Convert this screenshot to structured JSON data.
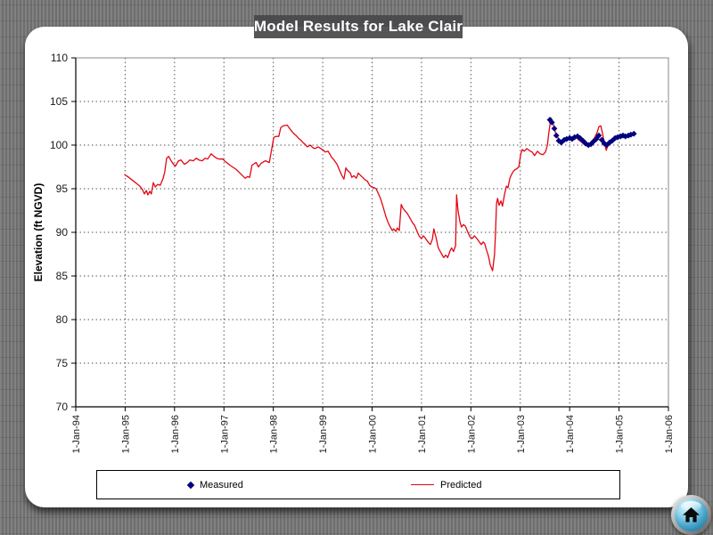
{
  "slide": {
    "title": "Model Results for Lake Clair"
  },
  "icons": {
    "home_icon": "⌂"
  },
  "legend": {
    "measured_label": "Measured",
    "predicted_label": "Predicted"
  },
  "chart_data": {
    "type": "line",
    "title": "Model Results for Lake Clair",
    "xlabel": "",
    "ylabel": "Elevation (ft NGVD)",
    "ylim": [
      70,
      110
    ],
    "y_ticks": [
      70,
      75,
      80,
      85,
      90,
      95,
      100,
      105,
      110
    ],
    "x_ticks": [
      "1-Jan-94",
      "1-Jan-95",
      "1-Jan-96",
      "1-Jan-97",
      "1-Jan-98",
      "1-Jan-99",
      "1-Jan-00",
      "1-Jan-01",
      "1-Jan-02",
      "1-Jan-03",
      "1-Jan-04",
      "1-Jan-05",
      "1-Jan-06"
    ],
    "x_unit": "t = years after 1-Jan-1994",
    "x_range_years": [
      0,
      12
    ],
    "grid": "dashed",
    "legend_position": "bottom",
    "series": [
      {
        "name": "Measured",
        "type": "scatter",
        "marker": "diamond",
        "color": "#000080",
        "points": [
          [
            9.6,
            102.9
          ],
          [
            9.64,
            102.6
          ],
          [
            9.69,
            101.9
          ],
          [
            9.73,
            101.1
          ],
          [
            9.78,
            100.5
          ],
          [
            9.83,
            100.3
          ],
          [
            9.89,
            100.6
          ],
          [
            9.94,
            100.7
          ],
          [
            10.0,
            100.8
          ],
          [
            10.05,
            100.7
          ],
          [
            10.1,
            100.9
          ],
          [
            10.16,
            101.0
          ],
          [
            10.21,
            100.8
          ],
          [
            10.27,
            100.5
          ],
          [
            10.32,
            100.2
          ],
          [
            10.38,
            100.0
          ],
          [
            10.43,
            100.1
          ],
          [
            10.48,
            100.4
          ],
          [
            10.54,
            100.7
          ],
          [
            10.59,
            101.1
          ],
          [
            10.65,
            100.6
          ],
          [
            10.7,
            100.2
          ],
          [
            10.75,
            100.0
          ],
          [
            10.81,
            100.3
          ],
          [
            10.86,
            100.5
          ],
          [
            10.92,
            100.8
          ],
          [
            10.97,
            100.9
          ],
          [
            11.03,
            101.0
          ],
          [
            11.08,
            101.1
          ],
          [
            11.13,
            101.0
          ],
          [
            11.19,
            101.1
          ],
          [
            11.24,
            101.2
          ],
          [
            11.3,
            101.3
          ]
        ]
      },
      {
        "name": "Predicted",
        "type": "line",
        "color": "#e30613",
        "points": [
          [
            0.99,
            96.6
          ],
          [
            1.05,
            96.4
          ],
          [
            1.14,
            96.0
          ],
          [
            1.23,
            95.6
          ],
          [
            1.3,
            95.3
          ],
          [
            1.35,
            94.9
          ],
          [
            1.39,
            94.4
          ],
          [
            1.43,
            94.8
          ],
          [
            1.46,
            94.3
          ],
          [
            1.5,
            94.7
          ],
          [
            1.53,
            94.4
          ],
          [
            1.57,
            95.7
          ],
          [
            1.61,
            95.2
          ],
          [
            1.66,
            95.5
          ],
          [
            1.71,
            95.4
          ],
          [
            1.77,
            96.2
          ],
          [
            1.8,
            96.9
          ],
          [
            1.84,
            98.5
          ],
          [
            1.88,
            98.7
          ],
          [
            1.93,
            98.2
          ],
          [
            1.98,
            97.8
          ],
          [
            2.02,
            97.6
          ],
          [
            2.08,
            98.2
          ],
          [
            2.13,
            98.3
          ],
          [
            2.2,
            97.8
          ],
          [
            2.26,
            98.0
          ],
          [
            2.31,
            98.3
          ],
          [
            2.38,
            98.2
          ],
          [
            2.44,
            98.5
          ],
          [
            2.49,
            98.3
          ],
          [
            2.56,
            98.2
          ],
          [
            2.62,
            98.5
          ],
          [
            2.67,
            98.4
          ],
          [
            2.74,
            99.0
          ],
          [
            2.8,
            98.7
          ],
          [
            2.85,
            98.5
          ],
          [
            2.91,
            98.4
          ],
          [
            2.98,
            98.4
          ],
          [
            3.01,
            98.2
          ],
          [
            3.12,
            97.7
          ],
          [
            3.25,
            97.2
          ],
          [
            3.34,
            96.7
          ],
          [
            3.43,
            96.2
          ],
          [
            3.48,
            96.4
          ],
          [
            3.52,
            96.3
          ],
          [
            3.57,
            97.7
          ],
          [
            3.65,
            98.0
          ],
          [
            3.7,
            97.5
          ],
          [
            3.75,
            97.9
          ],
          [
            3.84,
            98.2
          ],
          [
            3.92,
            98.0
          ],
          [
            3.95,
            99.0
          ],
          [
            4.01,
            100.9
          ],
          [
            4.06,
            101.0
          ],
          [
            4.11,
            101.0
          ],
          [
            4.15,
            102.0
          ],
          [
            4.2,
            102.2
          ],
          [
            4.28,
            102.3
          ],
          [
            4.33,
            101.9
          ],
          [
            4.37,
            101.6
          ],
          [
            4.42,
            101.3
          ],
          [
            4.46,
            101.1
          ],
          [
            4.51,
            100.8
          ],
          [
            4.55,
            100.6
          ],
          [
            4.6,
            100.3
          ],
          [
            4.64,
            100.1
          ],
          [
            4.69,
            99.8
          ],
          [
            4.75,
            100.0
          ],
          [
            4.8,
            99.7
          ],
          [
            4.84,
            99.6
          ],
          [
            4.91,
            99.8
          ],
          [
            4.96,
            99.6
          ],
          [
            5.02,
            99.4
          ],
          [
            5.05,
            99.2
          ],
          [
            5.11,
            99.3
          ],
          [
            5.18,
            98.6
          ],
          [
            5.23,
            98.3
          ],
          [
            5.29,
            97.8
          ],
          [
            5.32,
            97.4
          ],
          [
            5.38,
            96.6
          ],
          [
            5.43,
            96.1
          ],
          [
            5.47,
            97.4
          ],
          [
            5.5,
            97.1
          ],
          [
            5.56,
            96.8
          ],
          [
            5.59,
            96.3
          ],
          [
            5.63,
            96.5
          ],
          [
            5.68,
            96.2
          ],
          [
            5.72,
            96.8
          ],
          [
            5.77,
            96.5
          ],
          [
            5.81,
            96.3
          ],
          [
            5.86,
            96.0
          ],
          [
            5.9,
            95.9
          ],
          [
            5.95,
            95.4
          ],
          [
            5.99,
            95.2
          ],
          [
            6.05,
            95.1
          ],
          [
            6.08,
            95.0
          ],
          [
            6.13,
            94.4
          ],
          [
            6.17,
            93.9
          ],
          [
            6.23,
            92.8
          ],
          [
            6.28,
            91.8
          ],
          [
            6.32,
            91.2
          ],
          [
            6.35,
            90.8
          ],
          [
            6.41,
            90.2
          ],
          [
            6.44,
            90.4
          ],
          [
            6.48,
            90.1
          ],
          [
            6.51,
            90.5
          ],
          [
            6.55,
            90.2
          ],
          [
            6.59,
            93.2
          ],
          [
            6.62,
            92.8
          ],
          [
            6.66,
            92.5
          ],
          [
            6.71,
            92.2
          ],
          [
            6.75,
            91.8
          ],
          [
            6.78,
            91.5
          ],
          [
            6.82,
            91.1
          ],
          [
            6.86,
            90.8
          ],
          [
            6.89,
            90.4
          ],
          [
            6.95,
            89.6
          ],
          [
            7.0,
            89.3
          ],
          [
            7.04,
            89.6
          ],
          [
            7.07,
            89.4
          ],
          [
            7.13,
            88.9
          ],
          [
            7.18,
            88.6
          ],
          [
            7.22,
            89.2
          ],
          [
            7.25,
            90.4
          ],
          [
            7.29,
            89.5
          ],
          [
            7.34,
            88.2
          ],
          [
            7.38,
            87.8
          ],
          [
            7.42,
            87.4
          ],
          [
            7.45,
            87.1
          ],
          [
            7.49,
            87.4
          ],
          [
            7.53,
            87.1
          ],
          [
            7.58,
            87.9
          ],
          [
            7.61,
            88.2
          ],
          [
            7.65,
            87.8
          ],
          [
            7.69,
            88.5
          ],
          [
            7.71,
            94.3
          ],
          [
            7.74,
            92.5
          ],
          [
            7.78,
            91.2
          ],
          [
            7.81,
            90.6
          ],
          [
            7.85,
            90.9
          ],
          [
            7.89,
            90.7
          ],
          [
            7.94,
            90.0
          ],
          [
            7.98,
            89.5
          ],
          [
            8.03,
            89.3
          ],
          [
            8.07,
            89.6
          ],
          [
            8.12,
            89.3
          ],
          [
            8.17,
            88.9
          ],
          [
            8.21,
            88.6
          ],
          [
            8.25,
            88.9
          ],
          [
            8.28,
            88.7
          ],
          [
            8.32,
            87.9
          ],
          [
            8.36,
            87.2
          ],
          [
            8.39,
            86.3
          ],
          [
            8.44,
            85.6
          ],
          [
            8.48,
            87.5
          ],
          [
            8.5,
            90.0
          ],
          [
            8.52,
            93.3
          ],
          [
            8.54,
            93.9
          ],
          [
            8.57,
            93.1
          ],
          [
            8.61,
            93.6
          ],
          [
            8.64,
            93.0
          ],
          [
            8.68,
            94.3
          ],
          [
            8.72,
            95.3
          ],
          [
            8.75,
            95.1
          ],
          [
            8.79,
            96.2
          ],
          [
            8.82,
            96.6
          ],
          [
            8.86,
            97.0
          ],
          [
            8.9,
            97.2
          ],
          [
            8.93,
            97.3
          ],
          [
            8.97,
            97.5
          ],
          [
            9.01,
            99.0
          ],
          [
            9.04,
            99.5
          ],
          [
            9.08,
            99.3
          ],
          [
            9.13,
            99.6
          ],
          [
            9.18,
            99.4
          ],
          [
            9.24,
            99.2
          ],
          [
            9.29,
            98.8
          ],
          [
            9.35,
            99.3
          ],
          [
            9.4,
            99.0
          ],
          [
            9.46,
            98.9
          ],
          [
            9.51,
            99.2
          ],
          [
            9.55,
            100.0
          ],
          [
            9.58,
            101.5
          ],
          [
            9.62,
            103.1
          ],
          [
            9.65,
            102.8
          ],
          [
            9.69,
            102.0
          ],
          [
            9.73,
            101.0
          ],
          [
            9.76,
            100.9
          ],
          [
            9.8,
            100.2
          ],
          [
            9.85,
            100.5
          ],
          [
            9.91,
            100.7
          ],
          [
            9.96,
            100.8
          ],
          [
            10.01,
            100.7
          ],
          [
            10.07,
            100.8
          ],
          [
            10.12,
            101.0
          ],
          [
            10.18,
            100.6
          ],
          [
            10.23,
            100.4
          ],
          [
            10.29,
            100.1
          ],
          [
            10.34,
            99.9
          ],
          [
            10.39,
            100.1
          ],
          [
            10.45,
            100.4
          ],
          [
            10.5,
            100.8
          ],
          [
            10.56,
            101.5
          ],
          [
            10.59,
            102.1
          ],
          [
            10.63,
            102.2
          ],
          [
            10.66,
            101.5
          ],
          [
            10.7,
            100.3
          ],
          [
            10.74,
            99.4
          ],
          [
            10.79,
            100.2
          ],
          [
            10.85,
            100.5
          ],
          [
            10.9,
            100.8
          ],
          [
            10.95,
            100.9
          ],
          [
            11.01,
            100.9
          ],
          [
            11.06,
            101.0
          ],
          [
            11.12,
            101.0
          ],
          [
            11.17,
            101.1
          ],
          [
            11.21,
            101.2
          ]
        ]
      }
    ]
  }
}
